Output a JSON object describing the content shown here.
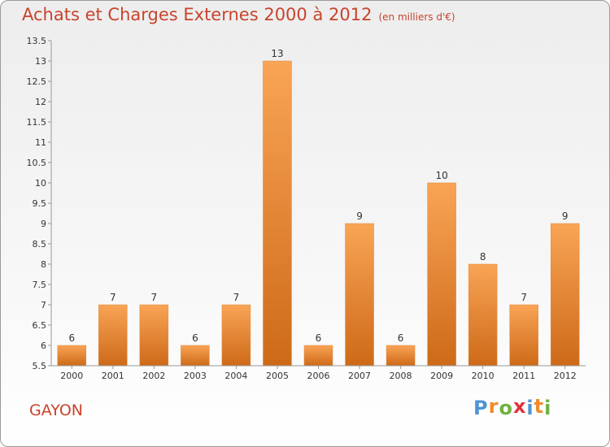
{
  "chart_data": {
    "type": "bar",
    "title": "Achats et Charges Externes 2000 à 2012",
    "subtitle": "(en milliers d'€)",
    "categories": [
      "2000",
      "2001",
      "2002",
      "2003",
      "2004",
      "2005",
      "2006",
      "2007",
      "2008",
      "2009",
      "2010",
      "2011",
      "2012"
    ],
    "values": [
      6,
      7,
      7,
      6,
      7,
      13,
      6,
      9,
      6,
      10,
      8,
      7,
      9
    ],
    "data_labels": [
      "6",
      "7",
      "7",
      "6",
      "7",
      "13",
      "6",
      "9",
      "6",
      "10",
      "8",
      "7",
      "9"
    ],
    "ylim": [
      5.5,
      13.5
    ],
    "yticks": [
      "5.5",
      "6",
      "6.5",
      "7",
      "7.5",
      "8",
      "8.5",
      "9",
      "9.5",
      "10",
      "10.5",
      "11",
      "11.5",
      "12",
      "12.5",
      "13",
      "13.5"
    ],
    "xlabel": "",
    "ylabel": "",
    "grid": false,
    "bar_color": "#f08a2c",
    "title_color": "#c8442c"
  },
  "footer": {
    "place_name": "GAYON",
    "brand": "Proxiti",
    "brand_letters": [
      "P",
      "r",
      "o",
      "x",
      "i",
      "t",
      "i"
    ],
    "brand_colors": [
      "#4f93d4",
      "#f08a2c",
      "#6db33f",
      "#e0323b",
      "#4f93d4",
      "#f08a2c",
      "#6db33f"
    ]
  }
}
